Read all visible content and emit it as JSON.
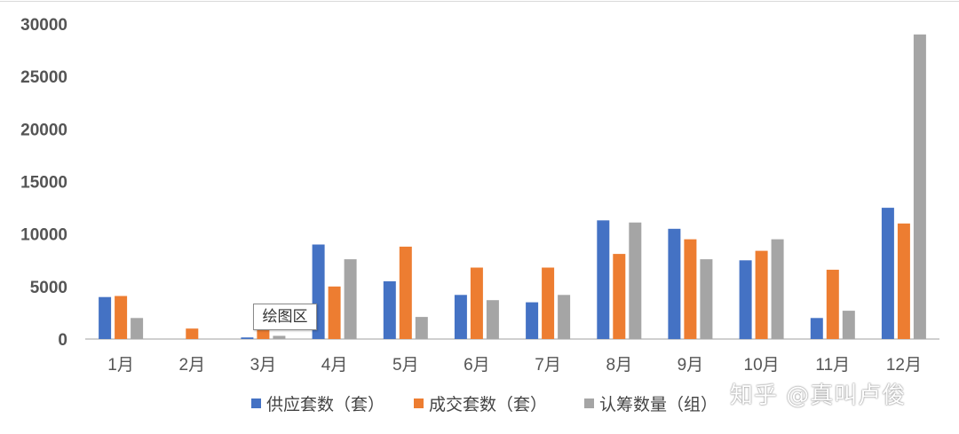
{
  "chart_data": {
    "type": "bar",
    "categories": [
      "1月",
      "2月",
      "3月",
      "4月",
      "5月",
      "6月",
      "7月",
      "8月",
      "9月",
      "10月",
      "11月",
      "12月"
    ],
    "series": [
      {
        "name": "供应套数（套）",
        "color": "#4472C4",
        "values": [
          4000,
          0,
          150,
          9000,
          5500,
          4200,
          3500,
          11300,
          10500,
          7500,
          2000,
          12500
        ]
      },
      {
        "name": "成交套数（套）",
        "color": "#ED7D31",
        "values": [
          4100,
          1000,
          1000,
          5000,
          8800,
          6800,
          6800,
          8100,
          9500,
          8400,
          6600,
          11000
        ]
      },
      {
        "name": "认筹数量（组）",
        "color": "#A5A5A5",
        "values": [
          2000,
          0,
          300,
          7600,
          2100,
          3700,
          4200,
          11100,
          7600,
          9500,
          2700,
          29000
        ]
      }
    ],
    "yticks": [
      "0",
      "5000",
      "10000",
      "15000",
      "20000",
      "25000",
      "30000"
    ],
    "ylim": [
      0,
      30000
    ],
    "grid": false,
    "legend_position": "bottom",
    "title": "",
    "xlabel": "",
    "ylabel": ""
  },
  "tooltip": {
    "label": "绘图区"
  },
  "watermark": {
    "text": "知乎 @真叫卢俊"
  }
}
